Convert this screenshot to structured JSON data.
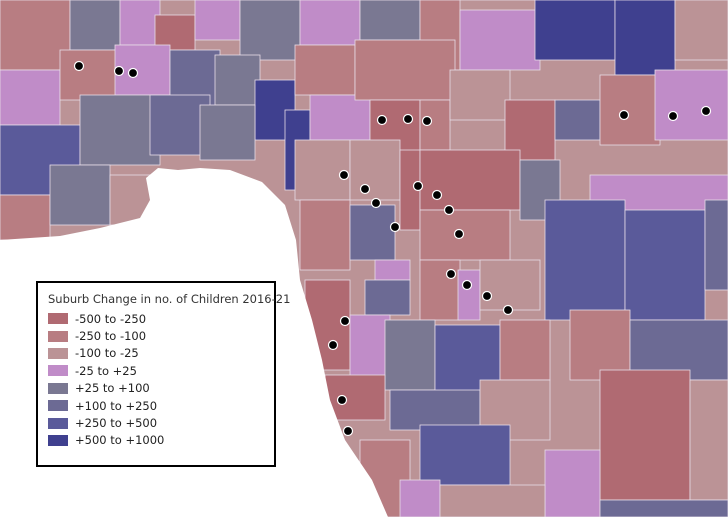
{
  "legend": {
    "title": "Suburb Change in no. of Children 2016-21",
    "items": [
      {
        "label": "-500 to -250",
        "color": "#b06a72"
      },
      {
        "label": "-250 to -100",
        "color": "#b87d82"
      },
      {
        "label": "-100 to -25",
        "color": "#bb9396"
      },
      {
        "label": "-25 to +25",
        "color": "#c08cc8"
      },
      {
        "label": "+25 to +100",
        "color": "#7a7892"
      },
      {
        "label": "+100 to +250",
        "color": "#6c6a94"
      },
      {
        "label": "+250 to +500",
        "color": "#5a5a9a"
      },
      {
        "label": "+500 to +1000",
        "color": "#3f408f"
      }
    ]
  }
}
